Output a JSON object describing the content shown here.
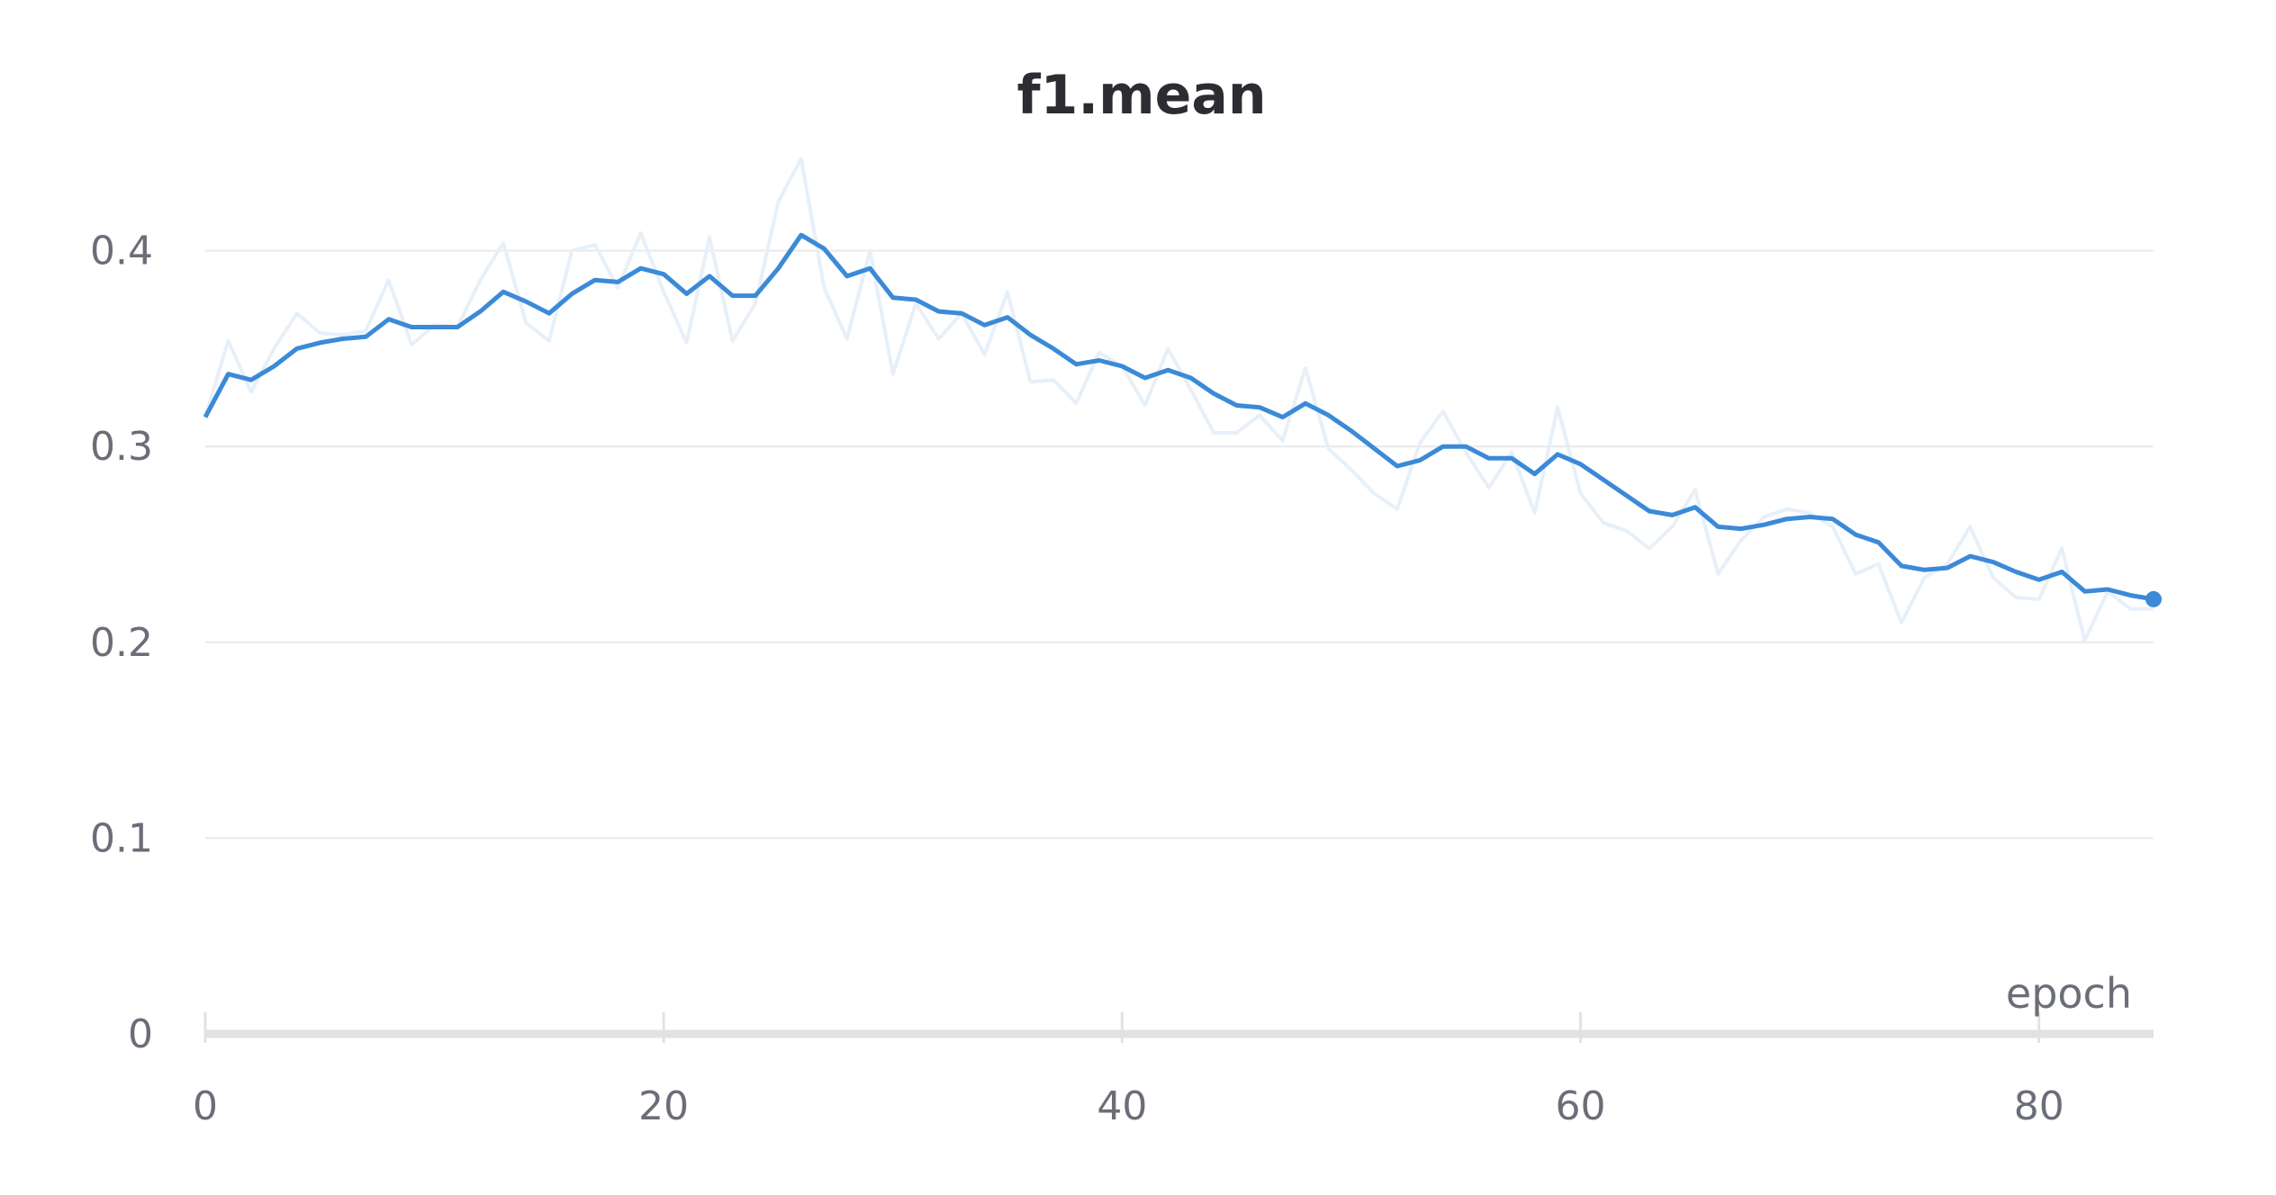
{
  "chart_data": {
    "type": "line",
    "title": "f1.mean",
    "xlabel": "epoch",
    "ylabel": "",
    "xlim": [
      0,
      85
    ],
    "ylim": [
      0,
      0.45
    ],
    "xticks": [
      0,
      20,
      40,
      60,
      80
    ],
    "xtick_labels": [
      "0",
      "20",
      "40",
      "60",
      "80"
    ],
    "yticks": [
      0,
      0.1,
      0.2,
      0.3,
      0.4
    ],
    "ytick_labels": [
      "0",
      "0.1",
      "0.2",
      "0.3",
      "0.4"
    ],
    "grid": true,
    "legend": "none",
    "colors": {
      "raw": "#e7f0f9",
      "smoothed": "#3b8ad8",
      "title": "#2b2d33",
      "ticks": "#6b6e78",
      "grid": "#e9e9ec"
    },
    "series": [
      {
        "role": "raw",
        "x": [
          0,
          1,
          2,
          3,
          4,
          5,
          6,
          7,
          8,
          9,
          10,
          11,
          12,
          13,
          14,
          15,
          16,
          17,
          18,
          19,
          20,
          21,
          22,
          23,
          24,
          25,
          26,
          27,
          28,
          29,
          30,
          31,
          32,
          33,
          34,
          35,
          36,
          37,
          38,
          39,
          40,
          41,
          42,
          43,
          44,
          45,
          46,
          47,
          48,
          49,
          50,
          51,
          52,
          53,
          54,
          55,
          56,
          57,
          58,
          59,
          60,
          61,
          62,
          63,
          64,
          65,
          66,
          67,
          68,
          69,
          70,
          71,
          72,
          73,
          74,
          75,
          76,
          77,
          78,
          79,
          80,
          81,
          82,
          83,
          84,
          85
        ],
        "values": [
          0.315,
          0.354,
          0.328,
          0.35,
          0.368,
          0.358,
          0.357,
          0.359,
          0.385,
          0.352,
          0.362,
          0.361,
          0.385,
          0.404,
          0.363,
          0.354,
          0.4,
          0.403,
          0.381,
          0.409,
          0.379,
          0.353,
          0.407,
          0.354,
          0.373,
          0.425,
          0.447,
          0.381,
          0.355,
          0.4,
          0.337,
          0.373,
          0.355,
          0.368,
          0.347,
          0.379,
          0.333,
          0.334,
          0.322,
          0.348,
          0.341,
          0.321,
          0.35,
          0.329,
          0.307,
          0.307,
          0.316,
          0.303,
          0.34,
          0.299,
          0.288,
          0.276,
          0.268,
          0.302,
          0.318,
          0.297,
          0.279,
          0.297,
          0.266,
          0.32,
          0.276,
          0.261,
          0.257,
          0.248,
          0.259,
          0.278,
          0.235,
          0.252,
          0.264,
          0.268,
          0.266,
          0.259,
          0.235,
          0.24,
          0.21,
          0.233,
          0.24,
          0.259,
          0.233,
          0.223,
          0.222,
          0.248,
          0.201,
          0.226,
          0.217,
          0.217
        ]
      },
      {
        "role": "smoothed",
        "x": [
          0,
          1,
          2,
          3,
          4,
          5,
          6,
          7,
          8,
          9,
          10,
          11,
          12,
          13,
          14,
          15,
          16,
          17,
          18,
          19,
          20,
          21,
          22,
          23,
          24,
          25,
          26,
          27,
          28,
          29,
          30,
          31,
          32,
          33,
          34,
          35,
          36,
          37,
          38,
          39,
          40,
          41,
          42,
          43,
          44,
          45,
          46,
          47,
          48,
          49,
          50,
          51,
          52,
          53,
          54,
          55,
          56,
          57,
          58,
          59,
          60,
          61,
          62,
          63,
          64,
          65,
          66,
          67,
          68,
          69,
          70,
          71,
          72,
          73,
          74,
          75,
          76,
          77,
          78,
          79,
          80,
          81,
          82,
          83,
          84,
          85
        ],
        "values": [
          0.315,
          0.337,
          0.334,
          0.341,
          0.35,
          0.353,
          0.355,
          0.356,
          0.365,
          0.361,
          0.361,
          0.361,
          0.369,
          0.379,
          0.374,
          0.368,
          0.378,
          0.385,
          0.384,
          0.391,
          0.388,
          0.378,
          0.387,
          0.377,
          0.377,
          0.391,
          0.408,
          0.401,
          0.387,
          0.391,
          0.376,
          0.375,
          0.369,
          0.368,
          0.362,
          0.366,
          0.357,
          0.35,
          0.342,
          0.344,
          0.341,
          0.335,
          0.339,
          0.335,
          0.327,
          0.321,
          0.32,
          0.315,
          0.322,
          0.316,
          0.308,
          0.299,
          0.29,
          0.293,
          0.3,
          0.3,
          0.294,
          0.294,
          0.286,
          0.296,
          0.291,
          0.283,
          0.275,
          0.267,
          0.265,
          0.269,
          0.259,
          0.258,
          0.26,
          0.263,
          0.264,
          0.263,
          0.255,
          0.251,
          0.239,
          0.237,
          0.238,
          0.244,
          0.241,
          0.236,
          0.232,
          0.236,
          0.226,
          0.227,
          0.224,
          0.222
        ]
      }
    ]
  }
}
